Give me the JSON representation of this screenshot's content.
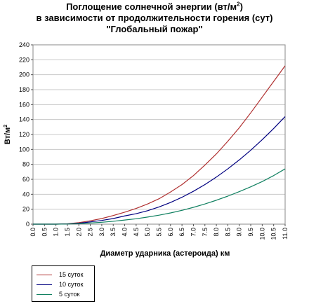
{
  "chart_data": {
    "type": "line",
    "title_line1": "Поглощение солнечной энергии (вт/м",
    "title_sup": "2",
    "title_line1_end": ")",
    "title_line2": "в зависимости от продолжительности горения (сут)",
    "title_line3": "\"Глобальный пожар\"",
    "xlabel": "Диаметр ударника (астероида) км",
    "ylabel": "Вт/м",
    "ylabel_sup": "2",
    "xlim": [
      0,
      11
    ],
    "ylim": [
      0,
      240
    ],
    "x_ticks": [
      "0.0",
      "0.5",
      "1.0",
      "1.5",
      "2.0",
      "2.5",
      "3.0",
      "3.5",
      "4.0",
      "4.5",
      "5.0",
      "5.5",
      "6.0",
      "6.5",
      "7.0",
      "7.5",
      "8.0",
      "8.5",
      "9.0",
      "9.5",
      "10.0",
      "10.5",
      "11.0"
    ],
    "y_ticks": [
      "0",
      "20",
      "40",
      "60",
      "80",
      "100",
      "120",
      "140",
      "160",
      "180",
      "200",
      "220",
      "240"
    ],
    "grid": "horizontal",
    "legend_position": "bottom-left",
    "x": [
      0.0,
      0.5,
      1.0,
      1.5,
      2.0,
      2.5,
      3.0,
      3.5,
      4.0,
      4.5,
      5.0,
      5.5,
      6.0,
      6.5,
      7.0,
      7.5,
      8.0,
      8.5,
      9.0,
      9.5,
      10.0,
      10.5,
      11.0
    ],
    "series": [
      {
        "name": "15 суток",
        "color": "#b03030",
        "values": [
          0,
          0,
          0,
          0.5,
          2.0,
          4.5,
          7.5,
          11.5,
          16,
          21,
          27,
          34,
          43,
          53,
          65,
          79,
          94,
          111,
          129,
          149,
          170,
          191,
          212
        ]
      },
      {
        "name": "10 суток",
        "color": "#000080",
        "values": [
          0,
          0,
          0,
          0.3,
          1.2,
          3.0,
          5.0,
          7.5,
          11,
          14,
          18,
          23,
          29,
          36,
          44,
          53,
          63,
          74,
          86,
          99,
          113,
          128,
          144
        ]
      },
      {
        "name": "5 суток",
        "color": "#108060",
        "values": [
          0,
          0,
          0,
          0.2,
          0.6,
          1.5,
          2.5,
          3.8,
          5.5,
          7.2,
          9.5,
          12,
          15,
          18.5,
          22.5,
          27,
          32,
          37.5,
          43.5,
          50,
          57,
          65,
          74
        ]
      }
    ]
  }
}
